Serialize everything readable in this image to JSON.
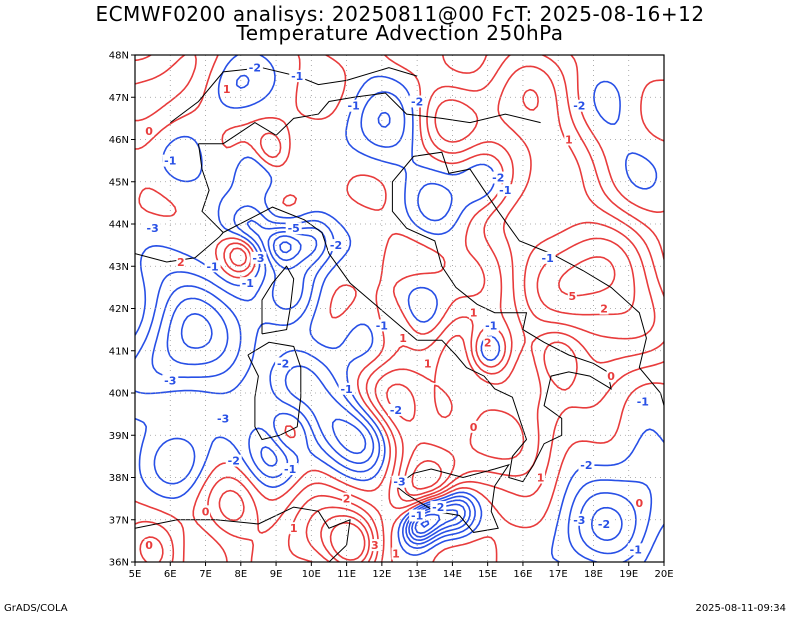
{
  "header": {
    "line1": "ECMWF0200 analisys: 20250811@00 FcT: 2025-08-16+12",
    "line2": "Temperature Advection 250hPa"
  },
  "footer": {
    "left": "GrADS/COLA",
    "right": "2025-08-11-09:34"
  },
  "axes": {
    "lat_labels": [
      "48N",
      "47N",
      "46N",
      "45N",
      "44N",
      "43N",
      "42N",
      "41N",
      "40N",
      "39N",
      "38N",
      "37N",
      "36N"
    ],
    "lon_labels": [
      "5E",
      "6E",
      "7E",
      "8E",
      "9E",
      "10E",
      "11E",
      "12E",
      "13E",
      "14E",
      "15E",
      "16E",
      "17E",
      "18E",
      "19E",
      "20E"
    ],
    "lat_range": [
      36,
      48
    ],
    "lon_range": [
      5,
      20
    ],
    "grid": "dotted"
  },
  "colors": {
    "warm_advection": "#e83c3c",
    "cold_advection": "#2850e6",
    "coastline": "#000000",
    "grid": "#999999"
  },
  "contour_labels": [
    {
      "text": "1",
      "lon": 7.6,
      "lat": 47.2,
      "kind": "warm"
    },
    {
      "text": "-2",
      "lon": 8.4,
      "lat": 47.7,
      "kind": "cold"
    },
    {
      "text": "-1",
      "lon": 9.6,
      "lat": 47.5,
      "kind": "cold"
    },
    {
      "text": "-1",
      "lon": 11.2,
      "lat": 46.8,
      "kind": "cold"
    },
    {
      "text": "0",
      "lon": 5.4,
      "lat": 46.2,
      "kind": "warm"
    },
    {
      "text": "-1",
      "lon": 6.0,
      "lat": 45.5,
      "kind": "cold"
    },
    {
      "text": "-2",
      "lon": 13.0,
      "lat": 46.9,
      "kind": "cold"
    },
    {
      "text": "-2",
      "lon": 15.3,
      "lat": 45.1,
      "kind": "cold"
    },
    {
      "text": "-1",
      "lon": 15.5,
      "lat": 44.8,
      "kind": "cold"
    },
    {
      "text": "-3",
      "lon": 5.5,
      "lat": 43.9,
      "kind": "cold"
    },
    {
      "text": "-5",
      "lon": 9.5,
      "lat": 43.9,
      "kind": "cold"
    },
    {
      "text": "2",
      "lon": 6.3,
      "lat": 43.1,
      "kind": "warm"
    },
    {
      "text": "-3",
      "lon": 8.5,
      "lat": 43.2,
      "kind": "cold"
    },
    {
      "text": "-1",
      "lon": 7.2,
      "lat": 43.0,
      "kind": "cold"
    },
    {
      "text": "-2",
      "lon": 10.7,
      "lat": 43.5,
      "kind": "cold"
    },
    {
      "text": "-1",
      "lon": 8.2,
      "lat": 42.6,
      "kind": "cold"
    },
    {
      "text": "1",
      "lon": 12.6,
      "lat": 41.3,
      "kind": "warm"
    },
    {
      "text": "-1",
      "lon": 12.0,
      "lat": 41.6,
      "kind": "cold"
    },
    {
      "text": "-2",
      "lon": 9.2,
      "lat": 40.7,
      "kind": "cold"
    },
    {
      "text": "-3",
      "lon": 6.0,
      "lat": 40.3,
      "kind": "cold"
    },
    {
      "text": "-3",
      "lon": 7.5,
      "lat": 39.4,
      "kind": "cold"
    },
    {
      "text": "-1",
      "lon": 11.0,
      "lat": 40.1,
      "kind": "cold"
    },
    {
      "text": "-2",
      "lon": 12.4,
      "lat": 39.6,
      "kind": "cold"
    },
    {
      "text": "0",
      "lon": 14.6,
      "lat": 39.2,
      "kind": "warm"
    },
    {
      "text": "1",
      "lon": 13.3,
      "lat": 40.7,
      "kind": "warm"
    },
    {
      "text": "-2",
      "lon": 7.8,
      "lat": 38.4,
      "kind": "cold"
    },
    {
      "text": "-1",
      "lon": 9.4,
      "lat": 38.2,
      "kind": "cold"
    },
    {
      "text": "2",
      "lon": 11.0,
      "lat": 37.5,
      "kind": "warm"
    },
    {
      "text": "-3",
      "lon": 12.5,
      "lat": 37.9,
      "kind": "cold"
    },
    {
      "text": "-2",
      "lon": 13.6,
      "lat": 37.3,
      "kind": "cold"
    },
    {
      "text": "1",
      "lon": 9.5,
      "lat": 36.8,
      "kind": "warm"
    },
    {
      "text": "0",
      "lon": 7.0,
      "lat": 37.2,
      "kind": "warm"
    },
    {
      "text": "-1",
      "lon": 13.0,
      "lat": 37.1,
      "kind": "cold"
    },
    {
      "text": "0",
      "lon": 5.4,
      "lat": 36.4,
      "kind": "warm"
    },
    {
      "text": "3",
      "lon": 11.8,
      "lat": 36.4,
      "kind": "warm"
    },
    {
      "text": "1",
      "lon": 12.4,
      "lat": 36.2,
      "kind": "warm"
    },
    {
      "text": "1",
      "lon": 17.3,
      "lat": 46.0,
      "kind": "warm"
    },
    {
      "text": "-2",
      "lon": 17.6,
      "lat": 46.8,
      "kind": "cold"
    },
    {
      "text": "-1",
      "lon": 16.7,
      "lat": 43.2,
      "kind": "cold"
    },
    {
      "text": "5",
      "lon": 17.4,
      "lat": 42.3,
      "kind": "warm"
    },
    {
      "text": "2",
      "lon": 18.3,
      "lat": 42.0,
      "kind": "warm"
    },
    {
      "text": "0",
      "lon": 18.5,
      "lat": 40.4,
      "kind": "warm"
    },
    {
      "text": "-1",
      "lon": 19.4,
      "lat": 39.8,
      "kind": "cold"
    },
    {
      "text": "-2",
      "lon": 17.8,
      "lat": 38.3,
      "kind": "cold"
    },
    {
      "text": "1",
      "lon": 16.5,
      "lat": 38.0,
      "kind": "warm"
    },
    {
      "text": "-3",
      "lon": 17.6,
      "lat": 37.0,
      "kind": "cold"
    },
    {
      "text": "-2",
      "lon": 18.3,
      "lat": 36.9,
      "kind": "cold"
    },
    {
      "text": "-1",
      "lon": 19.2,
      "lat": 36.3,
      "kind": "cold"
    },
    {
      "text": "0",
      "lon": 19.3,
      "lat": 37.4,
      "kind": "warm"
    },
    {
      "text": "1",
      "lon": 14.6,
      "lat": 41.9,
      "kind": "warm"
    },
    {
      "text": "2",
      "lon": 15.0,
      "lat": 41.2,
      "kind": "warm"
    },
    {
      "text": "-1",
      "lon": 15.1,
      "lat": 41.6,
      "kind": "cold"
    }
  ]
}
